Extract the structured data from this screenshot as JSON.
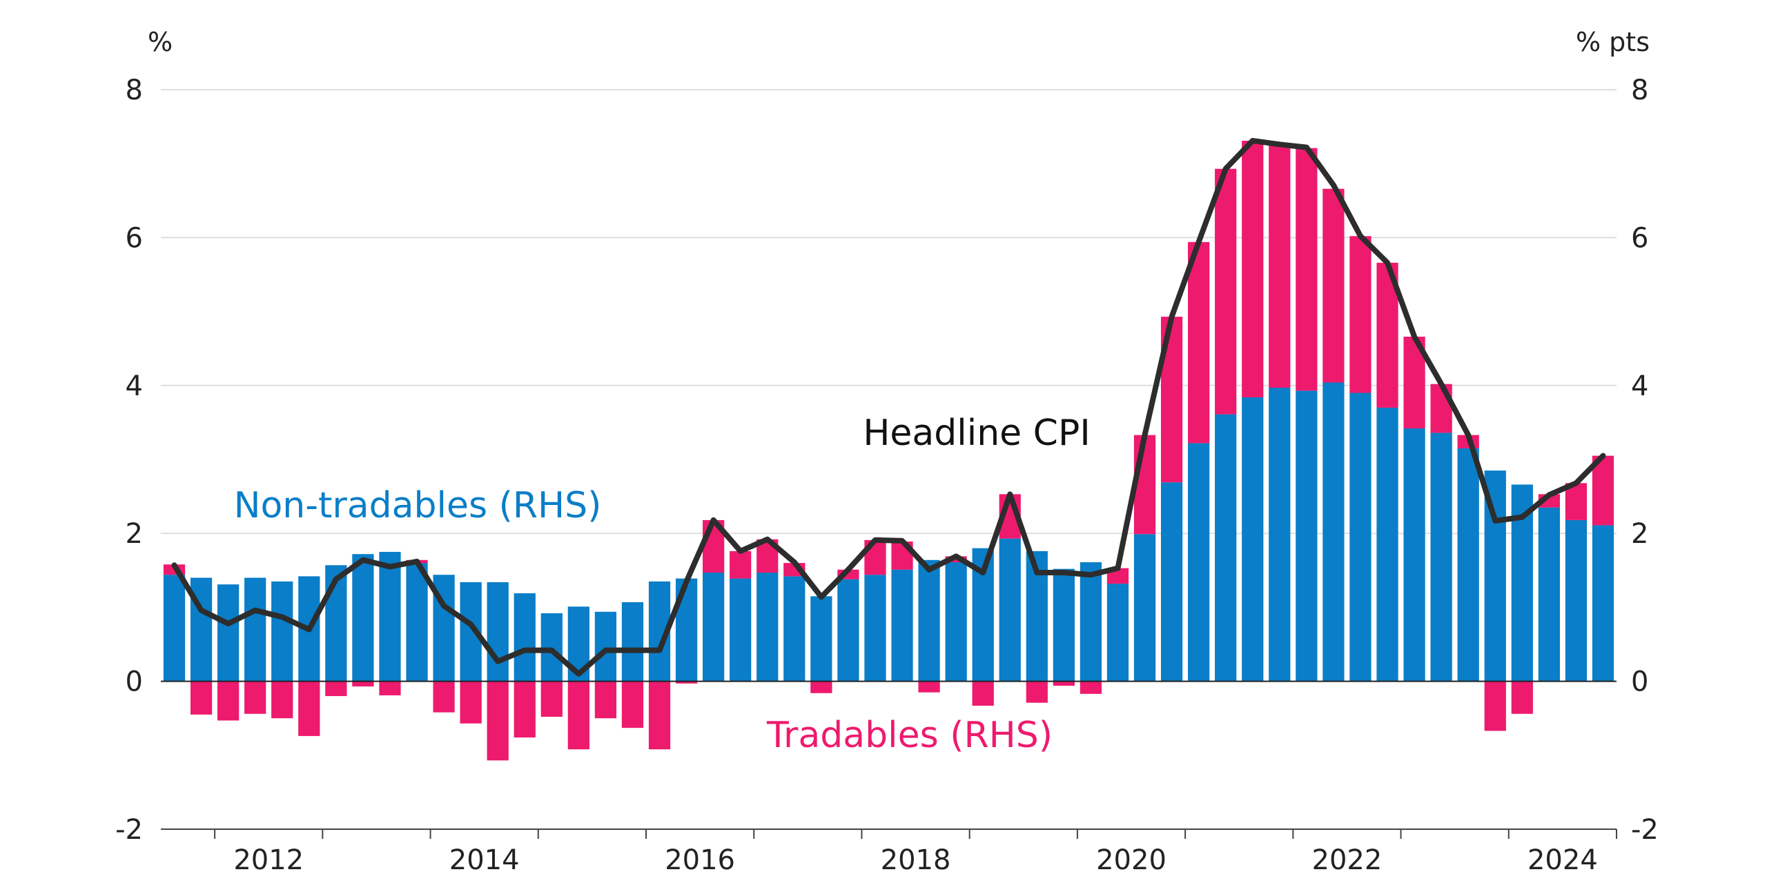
{
  "chart_data": {
    "type": "bar",
    "stacked": true,
    "title": "",
    "left_unit": "%",
    "right_unit": "% pts",
    "ylim": [
      -2,
      8
    ],
    "yticks": [
      -2,
      0,
      2,
      4,
      6,
      8
    ],
    "grid": true,
    "x_tick_labels": [
      "2012",
      "2014",
      "2016",
      "2018",
      "2020",
      "2022",
      "2024"
    ],
    "x_tick_label_quarter_index": [
      2,
      10,
      18,
      26,
      34,
      42,
      50
    ],
    "quarters_start": "2011-Q3",
    "series": [
      {
        "name": "Non-tradables (RHS)",
        "type": "bar",
        "color": "#0a7ec8",
        "values": [
          1.44,
          1.4,
          1.31,
          1.4,
          1.35,
          1.42,
          1.57,
          1.72,
          1.75,
          1.6,
          1.44,
          1.34,
          1.34,
          1.19,
          0.92,
          1.01,
          0.94,
          1.07,
          1.35,
          1.39,
          1.47,
          1.39,
          1.47,
          1.42,
          1.15,
          1.38,
          1.44,
          1.51,
          1.64,
          1.61,
          1.8,
          1.93,
          1.76,
          1.52,
          1.61,
          1.32,
          1.99,
          2.69,
          3.22,
          3.61,
          3.84,
          3.97,
          3.93,
          4.04,
          3.9,
          3.7,
          3.42,
          3.36,
          3.15,
          2.85,
          2.66,
          2.35,
          2.18,
          2.11
        ]
      },
      {
        "name": "Tradables (RHS)",
        "type": "bar",
        "color": "#ee1a6e",
        "values": [
          0.14,
          -0.45,
          -0.53,
          -0.44,
          -0.5,
          -0.74,
          -0.2,
          -0.07,
          -0.19,
          0.04,
          -0.42,
          -0.57,
          -1.07,
          -0.76,
          -0.48,
          -0.92,
          -0.5,
          -0.63,
          -0.92,
          -0.03,
          0.71,
          0.37,
          0.45,
          0.18,
          -0.16,
          0.13,
          0.47,
          0.38,
          -0.15,
          0.08,
          -0.33,
          0.6,
          -0.29,
          -0.06,
          -0.17,
          0.21,
          1.34,
          2.24,
          2.72,
          3.32,
          3.47,
          3.29,
          3.28,
          2.62,
          2.12,
          1.96,
          1.24,
          0.66,
          0.18,
          -0.67,
          -0.44,
          0.18,
          0.5,
          0.94
        ]
      },
      {
        "name": "Headline CPI",
        "type": "line",
        "color": "#2d2d2d",
        "values": [
          1.57,
          0.96,
          0.78,
          0.96,
          0.87,
          0.7,
          1.38,
          1.64,
          1.55,
          1.62,
          1.02,
          0.77,
          0.27,
          0.42,
          0.42,
          0.1,
          0.42,
          0.42,
          0.42,
          1.35,
          2.18,
          1.76,
          1.92,
          1.61,
          1.14,
          1.51,
          1.91,
          1.9,
          1.51,
          1.69,
          1.47,
          2.53,
          1.47,
          1.47,
          1.44,
          1.53,
          3.33,
          4.93,
          5.94,
          6.93,
          7.31,
          7.26,
          7.22,
          6.71,
          6.02,
          5.66,
          4.66,
          4.02,
          3.33,
          2.17,
          2.22,
          2.52,
          2.68,
          3.05
        ]
      }
    ],
    "annotations": [
      {
        "text": "Headline CPI",
        "series": "Headline CPI"
      },
      {
        "text": "Non-tradables (RHS)",
        "series": "Non-tradables (RHS)"
      },
      {
        "text": "Tradables (RHS)",
        "series": "Tradables (RHS)"
      }
    ]
  }
}
